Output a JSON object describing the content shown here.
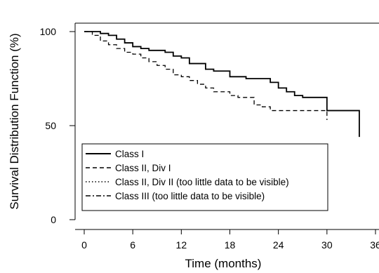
{
  "chart_data": {
    "type": "line",
    "xlabel": "Time (months)",
    "ylabel": "Survival Distribution Function (%)",
    "xlim": [
      0,
      36
    ],
    "ylim": [
      0,
      100
    ],
    "x_ticks": [
      "0",
      "6",
      "12",
      "18",
      "24",
      "30",
      "36"
    ],
    "y_ticks": [
      "0",
      "50",
      "100"
    ],
    "grid": false,
    "legend_position": "lower-left",
    "series": [
      {
        "name": "Class I",
        "line_style": "solid",
        "step": true,
        "x": [
          0,
          1,
          2,
          3,
          4,
          5,
          6,
          7,
          8,
          9,
          10,
          11,
          12,
          13,
          15,
          16,
          17,
          18,
          19,
          20,
          21,
          22,
          23,
          24,
          25,
          26,
          27,
          28,
          29,
          30,
          31,
          32,
          33,
          34
        ],
        "y": [
          100,
          100,
          99,
          98,
          96,
          94,
          92,
          91,
          90,
          90,
          89,
          87,
          86,
          83,
          80,
          79,
          79,
          76,
          76,
          75,
          75,
          75,
          73,
          70,
          68,
          66,
          65,
          65,
          65,
          58,
          58,
          58,
          58,
          44
        ]
      },
      {
        "name": "Class II, Div I",
        "line_style": "dashed",
        "step": true,
        "x": [
          0,
          1,
          2,
          3,
          4,
          5,
          6,
          7,
          8,
          9,
          10,
          11,
          12,
          13,
          14,
          15,
          16,
          17,
          18,
          19,
          20,
          21,
          22,
          23,
          24,
          25,
          26,
          27,
          28,
          29,
          30
        ],
        "y": [
          100,
          98,
          95,
          93,
          91,
          89,
          88,
          86,
          84,
          82,
          80,
          77,
          76,
          74,
          72,
          70,
          68,
          68,
          66,
          65,
          65,
          61,
          60,
          58,
          58,
          58,
          58,
          58,
          58,
          58,
          53
        ]
      },
      {
        "name": "Class II, Div II (too little data to be visible)",
        "line_style": "dotted",
        "x": [],
        "y": []
      },
      {
        "name": "Class III (too little data to be visible)",
        "line_style": "dashdot",
        "x": [],
        "y": []
      }
    ]
  },
  "colors": {
    "line": "#000000",
    "axis": "#000000",
    "background": "#ffffff"
  }
}
